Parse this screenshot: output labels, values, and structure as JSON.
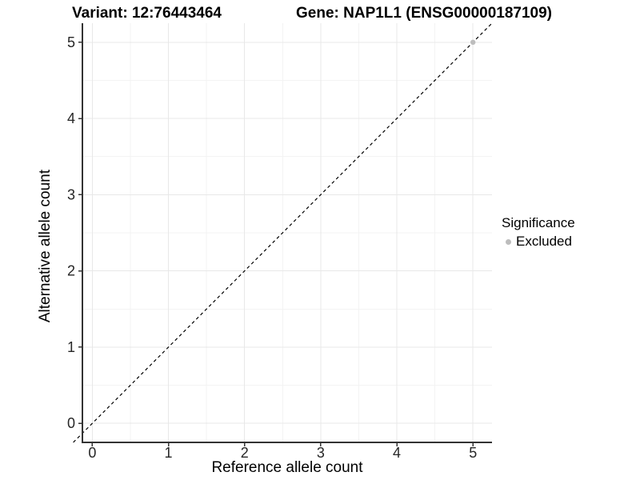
{
  "chart_data": {
    "type": "scatter",
    "titles": {
      "left": "Variant: 12:76443464",
      "right": "Gene: NAP1L1 (ENSG00000187109)"
    },
    "xlabel": "Reference allele count",
    "ylabel": "Alternative allele count",
    "xlim": [
      -0.13,
      5.25
    ],
    "ylim": [
      -0.25,
      5.25
    ],
    "xticks": [
      0,
      1,
      2,
      3,
      4,
      5
    ],
    "yticks": [
      0,
      1,
      2,
      3,
      4,
      5
    ],
    "minor_grid_step": 0.5,
    "grid": "major+minor",
    "series": [
      {
        "name": "Excluded",
        "color": "#bdbdbd",
        "points": [
          {
            "x": 5,
            "y": 5
          }
        ]
      }
    ],
    "reference_line": {
      "type": "identity",
      "slope": 1,
      "intercept": 0,
      "style": "dashed",
      "color": "#000000"
    },
    "legend": {
      "title": "Significance",
      "position": "right",
      "items": [
        {
          "label": "Excluded",
          "color": "#bdbdbd"
        }
      ]
    }
  },
  "colors": {
    "background": "#ffffff",
    "grid_major": "#e8e8e8",
    "grid_minor": "#f3f3f3",
    "axis_line": "#333333",
    "tick_mark": "#333333",
    "tick_text": "#262626",
    "title_text": "#000000",
    "point": "#bdbdbd"
  }
}
